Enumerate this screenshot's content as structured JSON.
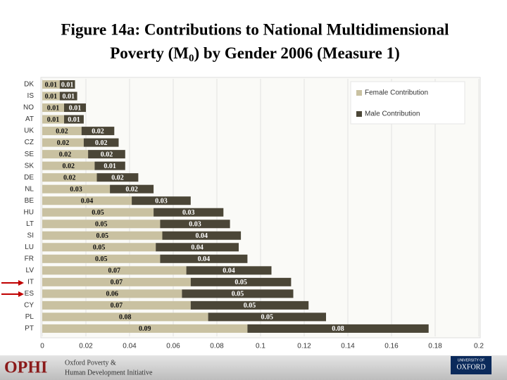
{
  "chart_data": {
    "type": "stacked-barh",
    "title": [
      "Figure 14a: Contributions to National Multidimensional",
      "Poverty (M",
      "0",
      ") by Gender 2006 (Measure 1)"
    ],
    "categories": [
      "DK",
      "IS",
      "NO",
      "AT",
      "UK",
      "CZ",
      "SE",
      "SK",
      "DE",
      "NL",
      "BE",
      "HU",
      "LT",
      "SI",
      "LU",
      "FR",
      "LV",
      "IT",
      "ES",
      "CY",
      "PL",
      "PT"
    ],
    "series": [
      {
        "name": "Female Contribution",
        "color": "#c9c1a1",
        "values": [
          0.008,
          0.008,
          0.01,
          0.01,
          0.018,
          0.019,
          0.021,
          0.024,
          0.025,
          0.031,
          0.041,
          0.051,
          0.054,
          0.055,
          0.052,
          0.054,
          0.066,
          0.068,
          0.064,
          0.068,
          0.076,
          0.094
        ],
        "value_labels": [
          "0.01",
          "0.01",
          "0.01",
          "0.01",
          "0.02",
          "0.02",
          "0.02",
          "0.02",
          "0.02",
          "0.03",
          "0.04",
          "0.05",
          "0.05",
          "0.05",
          "0.05",
          "0.05",
          "0.07",
          "0.07",
          "0.06",
          "0.07",
          "0.08",
          "0.09"
        ]
      },
      {
        "name": "Male Contribution",
        "color": "#4b4637",
        "values": [
          0.007,
          0.008,
          0.01,
          0.009,
          0.015,
          0.016,
          0.017,
          0.014,
          0.019,
          0.02,
          0.027,
          0.032,
          0.032,
          0.036,
          0.038,
          0.04,
          0.039,
          0.046,
          0.051,
          0.054,
          0.054,
          0.083
        ],
        "value_labels": [
          "0.01",
          "0.01",
          "0.01",
          "0.01",
          "0.02",
          "0.02",
          "0.02",
          "0.01",
          "0.02",
          "0.02",
          "0.03",
          "0.03",
          "0.03",
          "0.04",
          "0.04",
          "0.04",
          "0.04",
          "0.05",
          "0.05",
          "0.05",
          "0.05",
          "0.08"
        ]
      }
    ],
    "xlim": [
      0,
      0.2
    ],
    "xticks": [
      0,
      0.02,
      0.04,
      0.06,
      0.08,
      0.1,
      0.12,
      0.14,
      0.16,
      0.18,
      0.2
    ],
    "grid": true,
    "legend": "top-right"
  },
  "footer": {
    "logo": "OPHI",
    "org_line1": "Oxford Poverty &",
    "org_line2": "Human Development Initiative",
    "university_line1": "UNIVERSITY OF",
    "university_line2": "OXFORD"
  }
}
